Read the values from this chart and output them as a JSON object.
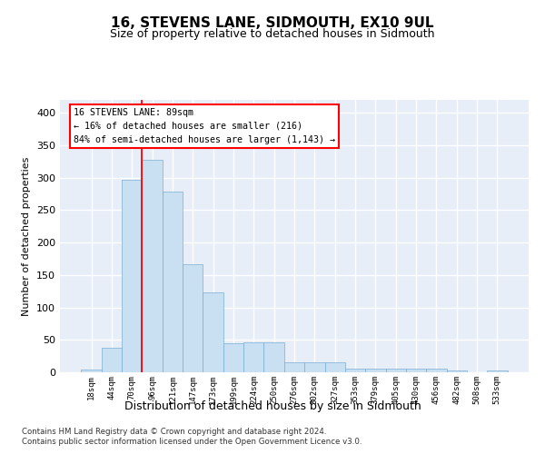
{
  "title": "16, STEVENS LANE, SIDMOUTH, EX10 9UL",
  "subtitle": "Size of property relative to detached houses in Sidmouth",
  "xlabel": "Distribution of detached houses by size in Sidmouth",
  "ylabel": "Number of detached properties",
  "bar_color": "#c9dff2",
  "bar_edge_color": "#7aadd4",
  "background_color": "#e8eef8",
  "grid_color": "#ffffff",
  "tick_labels": [
    "18sqm",
    "44sqm",
    "70sqm",
    "96sqm",
    "121sqm",
    "147sqm",
    "173sqm",
    "199sqm",
    "224sqm",
    "250sqm",
    "276sqm",
    "302sqm",
    "327sqm",
    "353sqm",
    "379sqm",
    "405sqm",
    "430sqm",
    "456sqm",
    "482sqm",
    "508sqm",
    "533sqm"
  ],
  "bar_values": [
    4,
    38,
    297,
    327,
    278,
    167,
    123,
    45,
    46,
    46,
    15,
    15,
    15,
    5,
    5,
    5,
    5,
    6,
    3,
    0,
    3
  ],
  "ylim": [
    0,
    420
  ],
  "yticks": [
    0,
    50,
    100,
    150,
    200,
    250,
    300,
    350,
    400
  ],
  "property_line_bin": 2.5,
  "annotation_text_line1": "16 STEVENS LANE: 89sqm",
  "annotation_text_line2": "← 16% of detached houses are smaller (216)",
  "annotation_text_line3": "84% of semi-detached houses are larger (1,143) →",
  "footnote1": "Contains HM Land Registry data © Crown copyright and database right 2024.",
  "footnote2": "Contains public sector information licensed under the Open Government Licence v3.0."
}
